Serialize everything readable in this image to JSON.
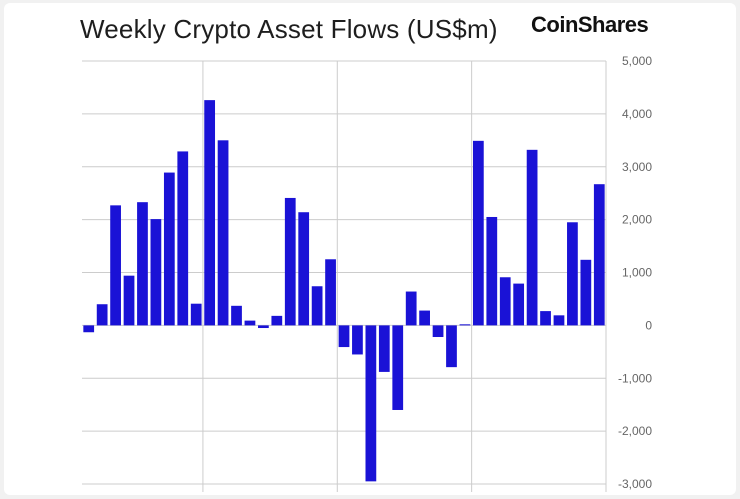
{
  "header": {
    "title": "Weekly Crypto Asset Flows (US$m)",
    "brand": "CoinShares"
  },
  "colors": {
    "bar": "#1a12d6",
    "grid": "#cccccc",
    "tick_text": "#666666"
  },
  "chart_data": {
    "type": "bar",
    "title": "Weekly Crypto Asset Flows (US$m)",
    "xlabel": "",
    "ylabel": "",
    "ylim": [
      -3000,
      5000
    ],
    "y_ticks": [
      5000,
      4000,
      3000,
      2000,
      1000,
      0,
      -1000,
      -2000,
      -3000
    ],
    "y_tick_labels": [
      "5,000",
      "4,000",
      "3,000",
      "2,000",
      "1,000",
      "0",
      "-1,000",
      "-2,000",
      "-3,000"
    ],
    "y_axis_position": "right",
    "grid": true,
    "values": [
      -130,
      400,
      2270,
      940,
      2330,
      2010,
      2890,
      3290,
      410,
      4260,
      3500,
      370,
      90,
      -50,
      180,
      2410,
      2140,
      740,
      1250,
      -410,
      -550,
      -2950,
      -880,
      -1600,
      640,
      280,
      -220,
      -790,
      20,
      3490,
      2050,
      910,
      790,
      3320,
      270,
      190,
      1950,
      1240,
      2670
    ],
    "vertical_gridlines_after_bar_index": [
      8,
      18,
      28
    ]
  }
}
